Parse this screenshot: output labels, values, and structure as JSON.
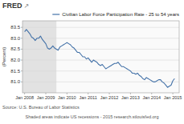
{
  "chart_data": {
    "type": "line",
    "ylabel": "(Percent)",
    "annotations": [
      "FRED",
      "↗",
      "Source: U.S. Bureau of Labor Statistics",
      "Shaded areas indicate US recessions - 2015 research.stlouisfed.org"
    ],
    "xlim": [
      2007.9,
      2015.3
    ],
    "ylim": [
      80.5,
      83.8
    ],
    "xticks": [
      {
        "value": 2008.0,
        "label": "Jan 2008"
      },
      {
        "value": 2009.0,
        "label": "Jan 2009"
      },
      {
        "value": 2010.0,
        "label": "Jan 2010"
      },
      {
        "value": 2011.0,
        "label": "Jan 2011"
      },
      {
        "value": 2012.0,
        "label": "Jan 2012"
      },
      {
        "value": 2013.0,
        "label": "Jan 2013"
      },
      {
        "value": 2014.0,
        "label": "Jan 2014"
      },
      {
        "value": 2015.0,
        "label": "Jan 2015"
      }
    ],
    "yticks": [
      {
        "value": 81.0,
        "label": "81.0"
      },
      81.5,
      {
        "value": 82.0,
        "label": "82.0"
      },
      82.5,
      {
        "value": 83.0,
        "label": "83.0"
      },
      83.5
    ],
    "grid": true,
    "legend": "upper right",
    "recession_shade": [
      [
        2007.9,
        2009.5
      ]
    ],
    "x": [
      2008.0,
      2008.083,
      2008.167,
      2008.25,
      2008.333,
      2008.417,
      2008.5,
      2008.583,
      2008.667,
      2008.75,
      2008.833,
      2008.917,
      2009.0,
      2009.083,
      2009.167,
      2009.25,
      2009.333,
      2009.417,
      2009.5,
      2009.583,
      2009.667,
      2009.75,
      2009.833,
      2009.917,
      2010.0,
      2010.083,
      2010.167,
      2010.25,
      2010.333,
      2010.417,
      2010.5,
      2010.583,
      2010.667,
      2010.75,
      2010.833,
      2010.917,
      2011.0,
      2011.083,
      2011.167,
      2011.25,
      2011.333,
      2011.417,
      2011.5,
      2011.583,
      2011.667,
      2011.75,
      2011.833,
      2011.917,
      2012.0,
      2012.083,
      2012.167,
      2012.25,
      2012.333,
      2012.417,
      2012.5,
      2012.583,
      2012.667,
      2012.75,
      2012.833,
      2012.917,
      2013.0,
      2013.083,
      2013.167,
      2013.25,
      2013.333,
      2013.417,
      2013.5,
      2013.583,
      2013.667,
      2013.75,
      2013.833,
      2013.917,
      2014.0,
      2014.083,
      2014.167,
      2014.25,
      2014.333,
      2014.417,
      2014.5,
      2014.583,
      2014.667,
      2014.75,
      2014.833,
      2014.917,
      2015.0,
      2015.083
    ],
    "series": [
      {
        "name": "Civilian Labor Force Participation Rate - 25 to 54 years",
        "color": "#4472a8",
        "values": [
          83.3,
          83.4,
          83.3,
          83.2,
          83.05,
          83.0,
          82.9,
          83.0,
          83.0,
          83.1,
          82.95,
          82.85,
          82.75,
          82.55,
          82.5,
          82.55,
          82.65,
          82.55,
          82.5,
          82.45,
          82.6,
          82.65,
          82.7,
          82.75,
          82.8,
          82.75,
          82.7,
          82.6,
          82.55,
          82.45,
          82.35,
          82.35,
          82.25,
          82.15,
          82.15,
          82.05,
          82.1,
          82.0,
          81.9,
          82.0,
          81.95,
          81.9,
          81.8,
          81.75,
          81.8,
          81.7,
          81.6,
          81.65,
          81.7,
          81.75,
          81.8,
          81.85,
          81.85,
          81.9,
          81.8,
          81.7,
          81.7,
          81.65,
          81.6,
          81.55,
          81.5,
          81.4,
          81.4,
          81.35,
          81.4,
          81.3,
          81.25,
          81.15,
          81.1,
          81.2,
          81.15,
          81.1,
          81.05,
          81.0,
          81.0,
          81.05,
          81.1,
          81.1,
          81.0,
          80.95,
          80.85,
          80.75,
          80.8,
          80.85,
          81.05,
          81.15
        ]
      }
    ]
  }
}
